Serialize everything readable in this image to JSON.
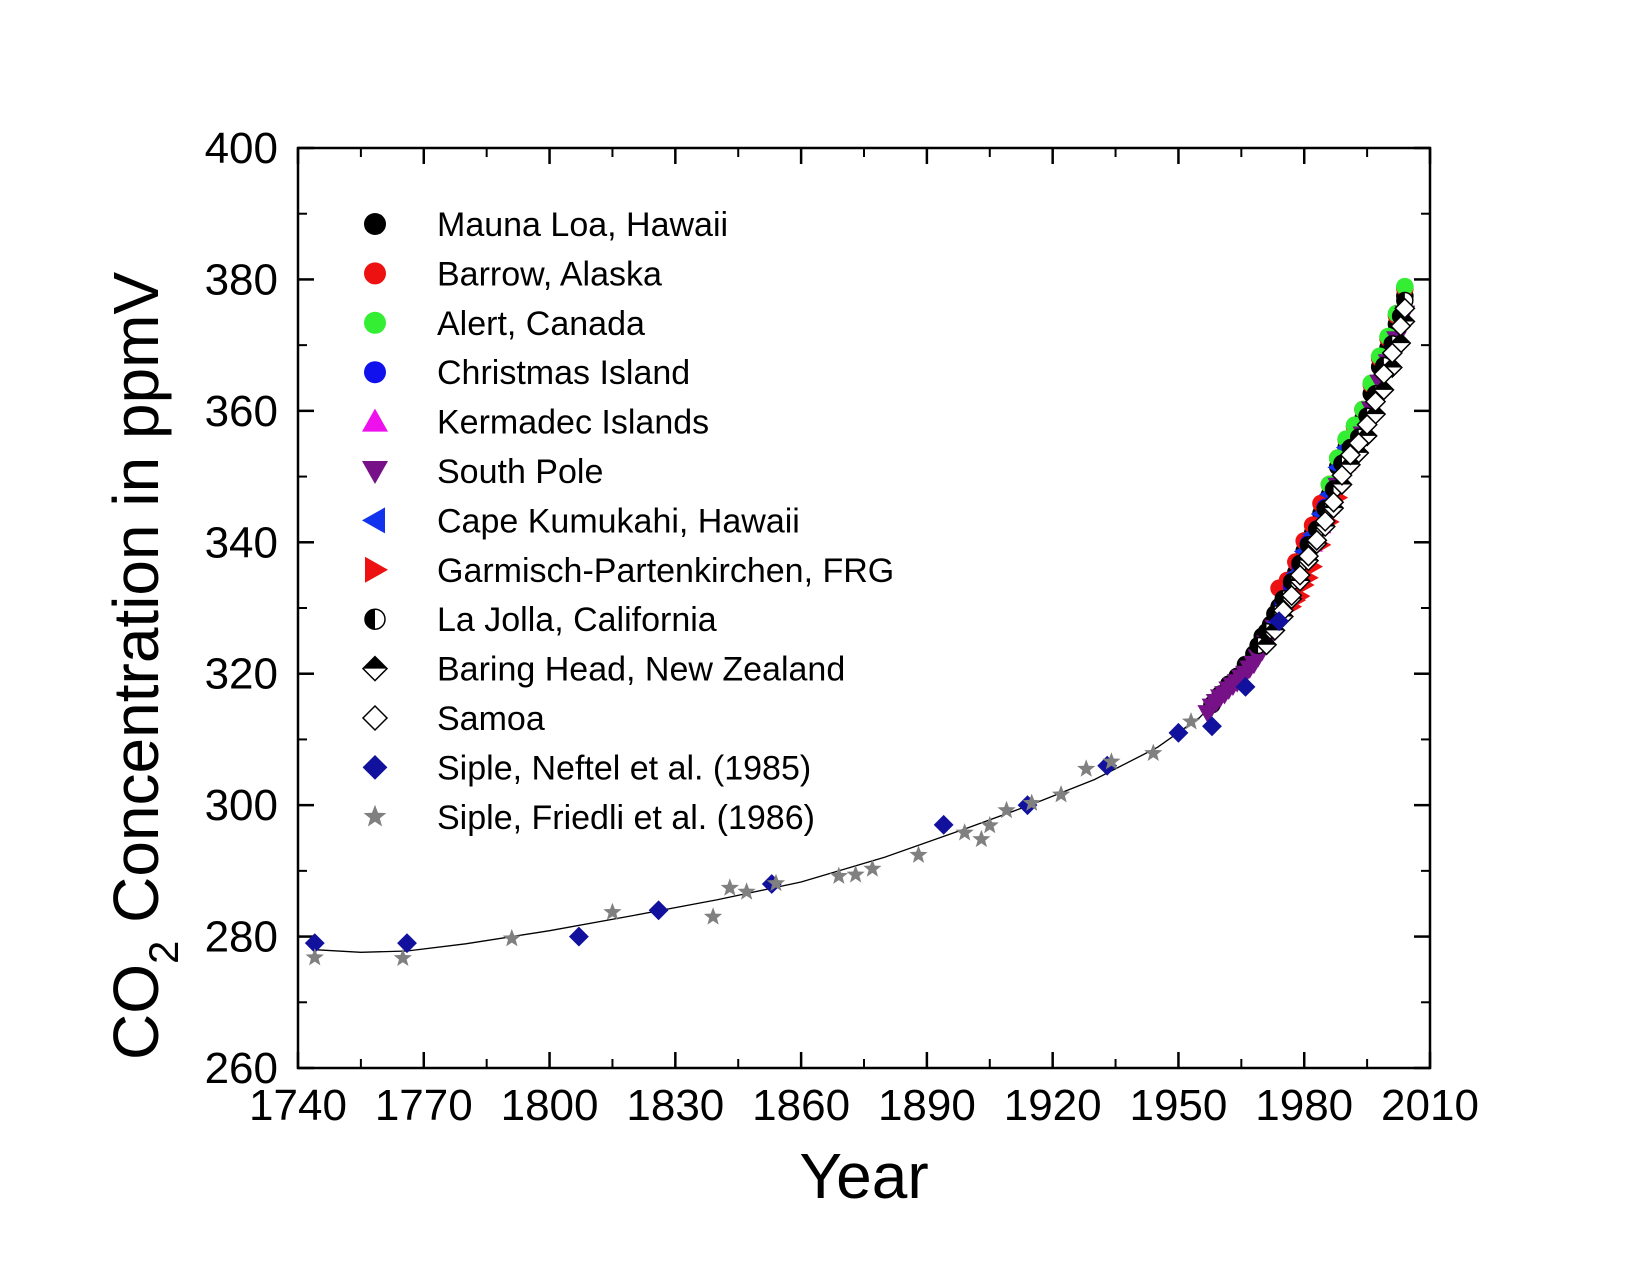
{
  "chart_data": {
    "type": "scatter",
    "title": "",
    "xlabel": "Year",
    "ylabel_parts": [
      "CO",
      "2",
      " Concentration in ppmV"
    ],
    "xlim": [
      1740,
      2010
    ],
    "ylim": [
      260,
      400
    ],
    "x_ticks": [
      1740,
      1770,
      1800,
      1830,
      1860,
      1890,
      1920,
      1950,
      1980,
      2010
    ],
    "y_ticks": [
      260,
      280,
      300,
      320,
      340,
      360,
      380,
      400
    ],
    "grid": false,
    "legend_position": "top-left",
    "series": [
      {
        "name": "Mauna Loa, Hawaii",
        "marker": "circle",
        "color": "#000000",
        "x": [
          1958,
          1960,
          1962,
          1964,
          1966,
          1968,
          1970,
          1972,
          1974,
          1976,
          1978,
          1980,
          1982,
          1984,
          1986,
          1988,
          1990,
          1992,
          1994,
          1996,
          1998,
          2000,
          2002,
          2004
        ],
        "y": [
          315.3,
          316.9,
          318.4,
          319.6,
          321.4,
          323.0,
          325.7,
          327.5,
          330.2,
          332.0,
          335.4,
          338.7,
          341.4,
          344.4,
          347.2,
          351.5,
          354.4,
          356.4,
          358.8,
          362.6,
          366.7,
          369.6,
          373.2,
          377.5
        ]
      },
      {
        "name": "Barrow, Alaska",
        "marker": "circle",
        "color": "#ee1111",
        "x": [
          1974,
          1976,
          1978,
          1980,
          1982,
          1984,
          1986,
          1988,
          1990,
          1992,
          1994,
          1996,
          1998,
          2000,
          2002,
          2004
        ],
        "y": [
          333.0,
          334.2,
          337.0,
          340.2,
          342.6,
          345.9,
          348.8,
          352.8,
          355.6,
          357.6,
          360.2,
          364.0,
          368.0,
          371.0,
          374.5,
          378.6
        ]
      },
      {
        "name": "Alert, Canada",
        "marker": "circle",
        "color": "#33ee33",
        "x": [
          1986,
          1988,
          1990,
          1992,
          1994,
          1996,
          1998,
          2000,
          2002,
          2004
        ],
        "y": [
          348.8,
          352.8,
          355.7,
          357.8,
          360.2,
          364.2,
          368.3,
          371.3,
          374.8,
          378.9
        ]
      },
      {
        "name": "Christmas Island",
        "marker": "circle",
        "color": "#1111ee",
        "x": [
          1975,
          1977,
          1979,
          1981,
          1983,
          1985
        ],
        "y": [
          330.8,
          333.3,
          336.4,
          339.8,
          342.0,
          345.3
        ]
      },
      {
        "name": "Kermadec Islands",
        "marker": "triangle-up",
        "color": "#ee11ee",
        "x": [
          1982,
          1984,
          1986,
          1988,
          1990,
          1992,
          1994,
          1996
        ],
        "y": [
          339.8,
          342.6,
          345.6,
          349.4,
          352.6,
          354.6,
          357.0,
          360.8
        ]
      },
      {
        "name": "South Pole",
        "marker": "triangle-down",
        "color": "#771188",
        "x": [
          1957,
          1958,
          1959,
          1960,
          1961,
          1962,
          1963,
          1964,
          1965,
          1966,
          1967,
          1968,
          1969,
          1970,
          1971,
          1972,
          1973,
          1974,
          1976,
          1978,
          1980,
          1982,
          1984,
          1986,
          1988,
          1990,
          1992,
          1994,
          1996,
          1998,
          2000,
          2002,
          2004
        ],
        "y": [
          314.0,
          315.0,
          315.7,
          316.4,
          316.9,
          317.6,
          318.2,
          318.7,
          319.4,
          320.0,
          320.8,
          321.5,
          322.5,
          323.5,
          324.6,
          325.6,
          327.0,
          328.2,
          330.1,
          332.9,
          336.1,
          338.9,
          341.8,
          344.7,
          348.6,
          351.8,
          353.9,
          356.4,
          360.2,
          364.3,
          367.4,
          370.9,
          374.8
        ]
      },
      {
        "name": "Cape Kumukahi, Hawaii",
        "marker": "triangle-left",
        "color": "#1133ee",
        "x": [
          1972,
          1974,
          1976,
          1978,
          1980,
          1982,
          1984,
          1986,
          1988,
          1990
        ],
        "y": [
          327.2,
          330.0,
          331.9,
          335.2,
          338.6,
          341.2,
          344.3,
          347.3,
          351.4,
          354.4
        ]
      },
      {
        "name": "Garmisch-Partenkirchen, FRG",
        "marker": "triangle-right",
        "color": "#ee1111",
        "x": [
          1977,
          1978,
          1979,
          1980,
          1981,
          1982,
          1984,
          1986,
          1988,
          1990
        ],
        "y": [
          330.2,
          331.2,
          331.8,
          333.5,
          334.6,
          336.3,
          339.6,
          343.1,
          346.8,
          351.0
        ]
      },
      {
        "name": "La Jolla, California",
        "marker": "half-circle",
        "color": "#000000",
        "x": [
          1969,
          1971,
          1973,
          1975,
          1977,
          1979,
          1981,
          1983,
          1985,
          1987,
          1989,
          1991,
          1993,
          1995,
          1997,
          1999,
          2001,
          2003,
          2004
        ],
        "y": [
          324.3,
          326.4,
          329.1,
          331.4,
          334.0,
          336.8,
          339.6,
          342.0,
          345.1,
          348.1,
          352.0,
          354.4,
          356.0,
          359.2,
          362.6,
          366.9,
          370.2,
          374.4,
          376.8
        ]
      },
      {
        "name": "Baring Head, New Zealand",
        "marker": "half-diamond",
        "color": "#000000",
        "x": [
          1971,
          1973,
          1975,
          1977,
          1979,
          1981,
          1983,
          1985,
          1987,
          1989,
          1991,
          1993,
          1995,
          1997,
          1999,
          2001,
          2003,
          2004
        ],
        "y": [
          324.4,
          326.6,
          328.7,
          331.4,
          334.1,
          337.2,
          339.8,
          342.4,
          345.2,
          348.8,
          351.8,
          353.6,
          356.2,
          359.5,
          363.2,
          366.6,
          370.3,
          373.6
        ]
      },
      {
        "name": "Samoa",
        "marker": "diamond-open",
        "color": "#000000",
        "x": [
          1975,
          1977,
          1979,
          1981,
          1983,
          1985,
          1987,
          1989,
          1991,
          1993,
          1995,
          1997,
          1999,
          2001,
          2003,
          2004
        ],
        "y": [
          329.6,
          331.9,
          335.0,
          337.9,
          340.3,
          343.2,
          346.1,
          350.2,
          353.3,
          355.1,
          357.9,
          361.4,
          365.6,
          368.8,
          372.9,
          375.6
        ]
      },
      {
        "name": "Siple, Neftel et al. (1985)",
        "marker": "diamond",
        "color": "#11119e",
        "x": [
          1744,
          1766,
          1807,
          1826,
          1853,
          1894,
          1914,
          1933,
          1950,
          1958,
          1966,
          1974
        ],
        "y": [
          279,
          279,
          280,
          284,
          288,
          297,
          300,
          306,
          311,
          312,
          318,
          328
        ]
      },
      {
        "name": "Siple, Friedli et al. (1986)",
        "marker": "star",
        "color": "#808080",
        "x": [
          1744,
          1765,
          1791,
          1815,
          1839,
          1843,
          1847,
          1854,
          1869,
          1873,
          1877,
          1888,
          1899,
          1903,
          1905,
          1909,
          1915,
          1922,
          1928,
          1934,
          1944,
          1953
        ],
        "y": [
          276.8,
          276.7,
          279.7,
          283.7,
          283.0,
          287.4,
          286.8,
          288.1,
          289.2,
          289.4,
          290.3,
          292.4,
          295.8,
          294.8,
          296.9,
          299.2,
          300.3,
          301.6,
          305.5,
          306.6,
          307.9,
          312.7
        ]
      }
    ],
    "fit_curve": {
      "name": "spline fit",
      "x": [
        1744,
        1755,
        1766,
        1780,
        1800,
        1820,
        1840,
        1860,
        1880,
        1900,
        1915,
        1930,
        1945,
        1955,
        1960,
        1965,
        1970,
        1975,
        1980,
        1985,
        1990,
        1995,
        2000,
        2004
      ],
      "y": [
        278.0,
        277.6,
        277.8,
        278.9,
        280.9,
        283.2,
        285.6,
        288.3,
        292.1,
        296.6,
        300.1,
        303.9,
        308.8,
        313.3,
        316.6,
        320.0,
        324.2,
        329.6,
        336.4,
        343.9,
        351.4,
        359.0,
        367.8,
        377.6
      ]
    }
  }
}
